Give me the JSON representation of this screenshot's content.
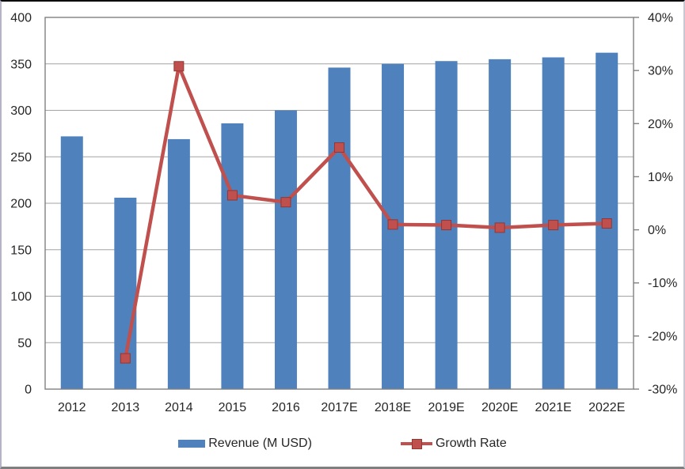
{
  "chart_data": {
    "type": "combo-bar-line",
    "title": "",
    "categories": [
      "2012",
      "2013",
      "2014",
      "2015",
      "2016",
      "2017E",
      "2018E",
      "2019E",
      "2020E",
      "2021E",
      "2022E"
    ],
    "series": [
      {
        "name": "Revenue (M USD)",
        "type": "bar",
        "axis": "left",
        "color": "#4f81bd",
        "values": [
          272,
          206,
          269,
          286,
          300,
          346,
          350,
          353,
          355,
          357,
          362
        ]
      },
      {
        "name": "Growth Rate",
        "type": "line",
        "axis": "right",
        "color": "#c0504d",
        "marker": "square",
        "unit": "%",
        "values": [
          null,
          -24.2,
          30.8,
          6.5,
          5.2,
          15.5,
          1.0,
          0.9,
          0.4,
          0.9,
          1.2
        ]
      }
    ],
    "axes": {
      "left": {
        "min": 0,
        "max": 400,
        "step": 50,
        "labels": [
          "0",
          "50",
          "100",
          "150",
          "200",
          "250",
          "300",
          "350",
          "400"
        ]
      },
      "right": {
        "min": -30,
        "max": 40,
        "step": 10,
        "labels": [
          "-30%",
          "-20%",
          "-10%",
          "0%",
          "10%",
          "20%",
          "30%",
          "40%"
        ]
      }
    },
    "grid": true,
    "legend_position": "bottom"
  },
  "colors": {
    "bar": "#4f81bd",
    "line": "#c0504d",
    "marker_border": "#943634",
    "grid": "#a3a3a3",
    "plot_border": "#808080",
    "text": "#262626"
  }
}
